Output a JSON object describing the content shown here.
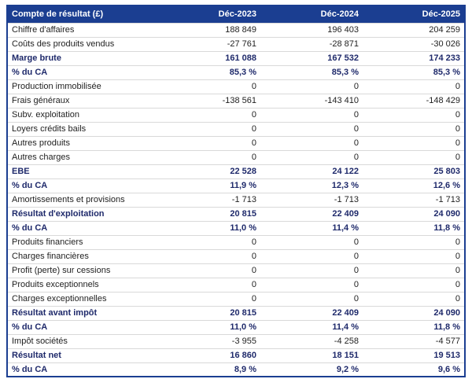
{
  "table": {
    "title_header": "Compte de résultat (£)",
    "year_columns": [
      "Déc-2023",
      "Déc-2024",
      "Déc-2025"
    ],
    "rows": [
      {
        "label": "Chiffre d'affaires",
        "values": [
          "188 849",
          "196 403",
          "204 259"
        ],
        "bold": false
      },
      {
        "label": "Coûts des produits vendus",
        "values": [
          "-27 761",
          "-28 871",
          "-30 026"
        ],
        "bold": false
      },
      {
        "label": "Marge brute",
        "values": [
          "161 088",
          "167 532",
          "174 233"
        ],
        "bold": true
      },
      {
        "label": "% du CA",
        "values": [
          "85,3 %",
          "85,3 %",
          "85,3 %"
        ],
        "bold": true
      },
      {
        "label": "Production immobilisée",
        "values": [
          "0",
          "0",
          "0"
        ],
        "bold": false
      },
      {
        "label": "Frais généraux",
        "values": [
          "-138 561",
          "-143 410",
          "-148 429"
        ],
        "bold": false
      },
      {
        "label": "Subv. exploitation",
        "values": [
          "0",
          "0",
          "0"
        ],
        "bold": false
      },
      {
        "label": "Loyers crédits bails",
        "values": [
          "0",
          "0",
          "0"
        ],
        "bold": false
      },
      {
        "label": "Autres produits",
        "values": [
          "0",
          "0",
          "0"
        ],
        "bold": false
      },
      {
        "label": "Autres charges",
        "values": [
          "0",
          "0",
          "0"
        ],
        "bold": false
      },
      {
        "label": "EBE",
        "values": [
          "22 528",
          "24 122",
          "25 803"
        ],
        "bold": true
      },
      {
        "label": "% du CA",
        "values": [
          "11,9 %",
          "12,3 %",
          "12,6 %"
        ],
        "bold": true
      },
      {
        "label": "Amortissements et provisions",
        "values": [
          "-1 713",
          "-1 713",
          "-1 713"
        ],
        "bold": false
      },
      {
        "label": "Résultat d'exploitation",
        "values": [
          "20 815",
          "22 409",
          "24 090"
        ],
        "bold": true
      },
      {
        "label": "% du CA",
        "values": [
          "11,0 %",
          "11,4 %",
          "11,8 %"
        ],
        "bold": true
      },
      {
        "label": "Produits financiers",
        "values": [
          "0",
          "0",
          "0"
        ],
        "bold": false
      },
      {
        "label": "Charges financières",
        "values": [
          "0",
          "0",
          "0"
        ],
        "bold": false
      },
      {
        "label": "Profit (perte) sur cessions",
        "values": [
          "0",
          "0",
          "0"
        ],
        "bold": false
      },
      {
        "label": "Produits exceptionnels",
        "values": [
          "0",
          "0",
          "0"
        ],
        "bold": false
      },
      {
        "label": "Charges exceptionnelles",
        "values": [
          "0",
          "0",
          "0"
        ],
        "bold": false
      },
      {
        "label": "Résultat avant impôt",
        "values": [
          "20 815",
          "22 409",
          "24 090"
        ],
        "bold": true
      },
      {
        "label": "% du CA",
        "values": [
          "11,0 %",
          "11,4 %",
          "11,8 %"
        ],
        "bold": true
      },
      {
        "label": "Impôt sociétés",
        "values": [
          "-3 955",
          "-4 258",
          "-4 577"
        ],
        "bold": false
      },
      {
        "label": "Résultat net",
        "values": [
          "16 860",
          "18 151",
          "19 513"
        ],
        "bold": true
      },
      {
        "label": "% du CA",
        "values": [
          "8,9 %",
          "9,2 %",
          "9,6 %"
        ],
        "bold": true
      }
    ],
    "colors": {
      "header_background": "#1b3e91",
      "header_text": "#ffffff",
      "bold_row_text": "#1f2a6b",
      "regular_row_text": "#1f1f1f",
      "row_separator": "#d9d9d9",
      "outer_border": "#1b3e91"
    }
  }
}
